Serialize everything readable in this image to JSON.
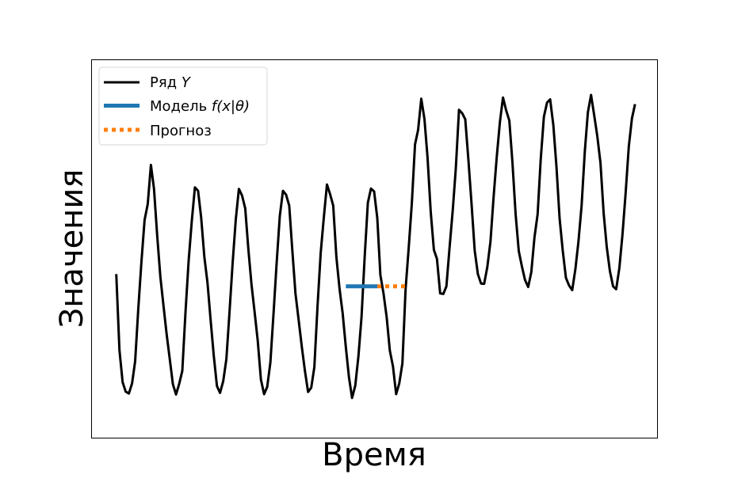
{
  "chart_data": {
    "type": "line",
    "xlabel": "Время",
    "ylabel": "Значения",
    "grid": false,
    "legend_position": "top-left",
    "xticks": [],
    "yticks": [],
    "xlim": [
      -8,
      172
    ],
    "ylim": [
      -0.5,
      11.5
    ],
    "legend": [
      {
        "label_prefix": "Ряд ",
        "label_math": "Y",
        "label_suffix": ""
      },
      {
        "label_prefix": "Модель ",
        "label_math": "f(x|θ)",
        "label_suffix": ""
      },
      {
        "label_prefix": "Прогноз",
        "label_math": "",
        "label_suffix": ""
      }
    ],
    "series": [
      {
        "name": "Ряд Y",
        "color": "#000000",
        "linestyle": "solid",
        "linewidth": 3,
        "y": [
          4.69,
          2.28,
          1.26,
          0.96,
          0.9,
          1.22,
          1.92,
          3.6,
          5.1,
          6.4,
          6.91,
          8.15,
          7.39,
          5.92,
          4.61,
          3.7,
          2.79,
          1.99,
          1.2,
          0.87,
          1.21,
          1.62,
          3.47,
          5.11,
          6.35,
          7.44,
          7.33,
          6.48,
          5.24,
          4.41,
          3.24,
          2.1,
          1.14,
          0.92,
          1.29,
          1.99,
          3.46,
          5.04,
          6.43,
          7.39,
          7.18,
          6.77,
          5.49,
          4.36,
          3.47,
          2.57,
          1.34,
          0.88,
          1.11,
          1.88,
          3.44,
          5.03,
          6.53,
          7.33,
          7.21,
          6.86,
          5.41,
          4.07,
          3.23,
          2.38,
          1.62,
          0.95,
          1.09,
          1.74,
          3.67,
          5.36,
          6.47,
          7.53,
          7.22,
          6.86,
          5.23,
          4.22,
          3.45,
          2.38,
          1.41,
          0.76,
          1.15,
          2.08,
          3.32,
          5.24,
          6.95,
          7.4,
          7.31,
          6.47,
          4.66,
          4.07,
          3.31,
          2.27,
          1.76,
          0.88,
          1.22,
          1.86,
          4.21,
          5.51,
          6.94,
          8.8,
          9.26,
          10.25,
          9.61,
          8.39,
          6.67,
          5.46,
          5.17,
          4.08,
          4.06,
          4.3,
          5.53,
          6.71,
          8.05,
          9.9,
          9.79,
          9.6,
          8.3,
          6.89,
          5.44,
          4.69,
          4.39,
          4.38,
          4.91,
          5.72,
          7.12,
          8.4,
          9.51,
          10.29,
          9.88,
          9.56,
          8.24,
          6.6,
          5.42,
          4.94,
          4.5,
          4.28,
          4.75,
          5.85,
          6.59,
          8.33,
          9.68,
          10.13,
          10.23,
          9.42,
          8.08,
          6.46,
          5.43,
          4.57,
          4.33,
          4.18,
          4.84,
          5.72,
          6.87,
          8.57,
          9.82,
          10.37,
          9.72,
          9.06,
          8.21,
          6.62,
          5.55,
          4.78,
          4.3,
          4.21,
          4.88,
          5.96,
          7.25,
          8.73,
          9.63,
          10.08
        ]
      },
      {
        "name": "Модель f(x|θ)",
        "color": "#1f77b4",
        "linestyle": "solid",
        "linewidth": 5,
        "x": [
          73,
          83
        ],
        "y": [
          4.3,
          4.3
        ]
      },
      {
        "name": "Прогноз",
        "color": "#ff7f0e",
        "linestyle": "dotted",
        "linewidth": 5,
        "x": [
          83,
          92
        ],
        "y": [
          4.3,
          4.3
        ]
      }
    ]
  }
}
